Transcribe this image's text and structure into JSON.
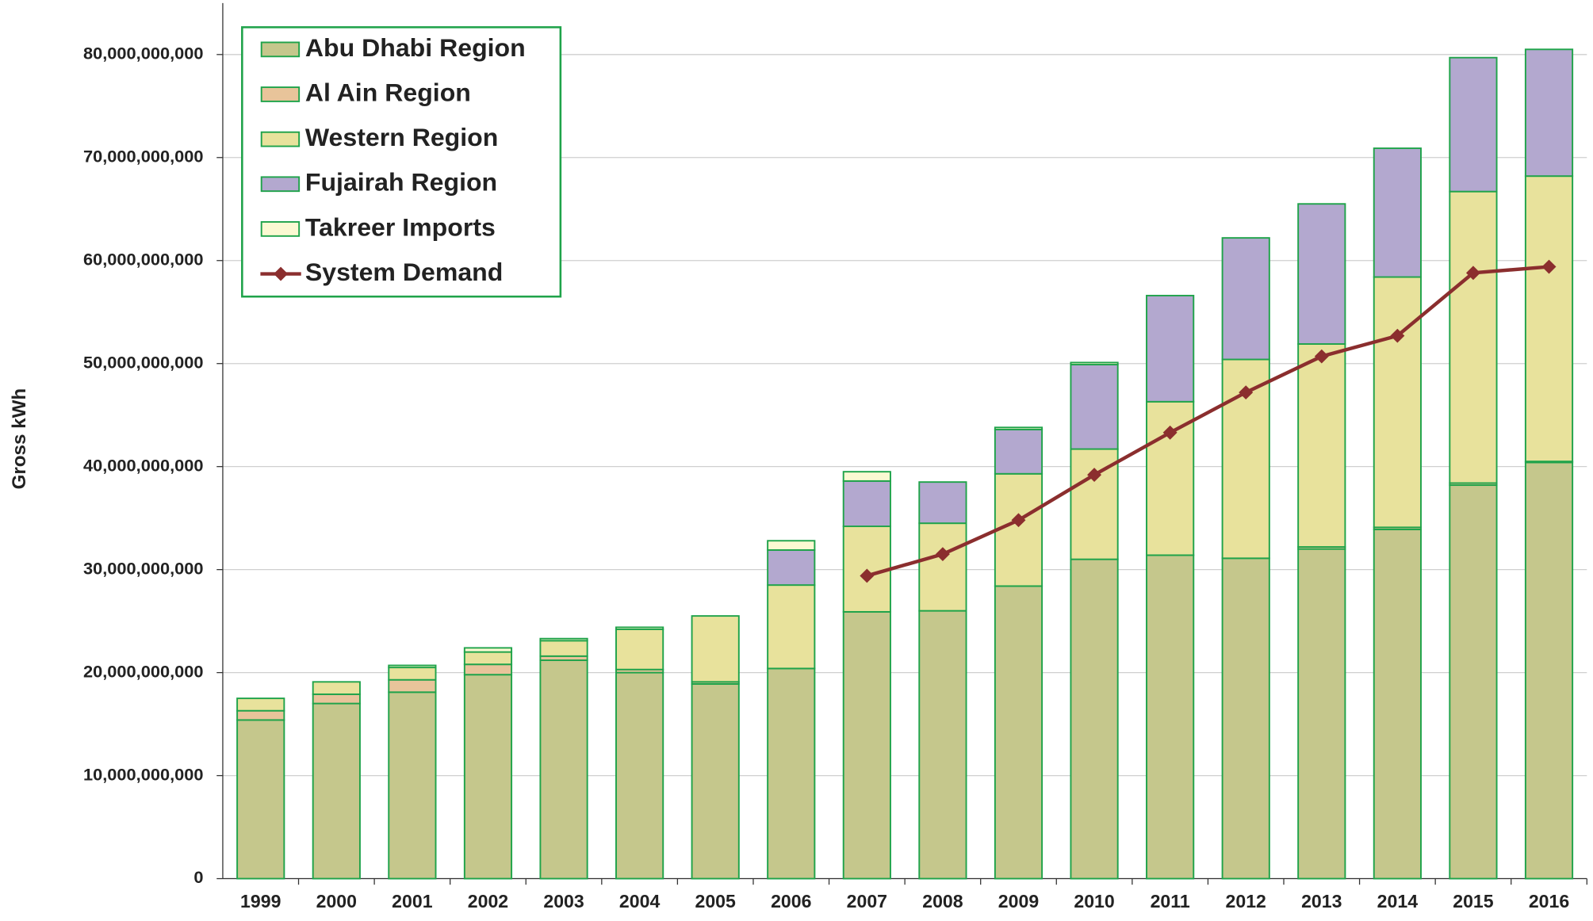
{
  "chart_data": {
    "type": "bar",
    "y_label": "Gross kWh",
    "categories": [
      "1999",
      "2000",
      "2001",
      "2002",
      "2003",
      "2004",
      "2005",
      "2006",
      "2007",
      "2008",
      "2009",
      "2010",
      "2011",
      "2012",
      "2013",
      "2014",
      "2015",
      "2016"
    ],
    "stacked": true,
    "grid": true,
    "legend": "upper left",
    "ylim": [
      0,
      85000000000
    ],
    "yticks": [
      0,
      {
        "value": 10000000000,
        "label": "10,000,000,000"
      },
      {
        "value": 20000000000,
        "label": "20,000,000,000"
      },
      {
        "value": 30000000000,
        "label": "30,000,000,000"
      },
      {
        "value": 40000000000,
        "label": "40,000,000,000"
      },
      {
        "value": 50000000000,
        "label": "50,000,000,000"
      },
      {
        "value": 60000000000,
        "label": "60,000,000,000"
      },
      {
        "value": 70000000000,
        "label": "70,000,000,000"
      },
      {
        "value": 80000000000,
        "label": "80,000,000,000"
      }
    ],
    "series": [
      {
        "name": "Abu Dhabi Region",
        "color": "#c5c78c",
        "values": [
          15400000000,
          17000000000,
          18100000000,
          19800000000,
          21200000000,
          20000000000,
          18900000000,
          20400000000,
          25900000000,
          26000000000,
          28400000000,
          31000000000,
          31400000000,
          31100000000,
          32000000000,
          33900000000,
          38200000000,
          40400000000
        ]
      },
      {
        "name": "Al Ain Region",
        "color": "#e8c49a",
        "values": [
          900000000,
          900000000,
          1200000000,
          1000000000,
          400000000,
          300000000,
          200000000,
          0,
          0,
          0,
          0,
          0,
          0,
          0,
          200000000,
          200000000,
          200000000,
          100000000
        ]
      },
      {
        "name": "Western Region",
        "color": "#e8e29c",
        "values": [
          1200000000,
          1200000000,
          1200000000,
          1200000000,
          1500000000,
          3900000000,
          6400000000,
          8100000000,
          8300000000,
          8500000000,
          10900000000,
          10700000000,
          14900000000,
          19300000000,
          19700000000,
          24300000000,
          28300000000,
          27700000000
        ]
      },
      {
        "name": "Fujairah Region",
        "color": "#b3a8cf",
        "values": [
          0,
          0,
          0,
          0,
          0,
          0,
          0,
          3400000000,
          4400000000,
          4000000000,
          4300000000,
          8200000000,
          10300000000,
          11800000000,
          13600000000,
          12500000000,
          13000000000,
          12300000000
        ]
      },
      {
        "name": "Takreer Imports",
        "color": "#fbf9d2",
        "values": [
          0,
          0,
          200000000,
          400000000,
          200000000,
          200000000,
          0,
          900000000,
          900000000,
          0,
          200000000,
          200000000,
          0,
          0,
          0,
          0,
          0,
          0
        ]
      },
      {
        "name": "System Demand",
        "type": "line",
        "color": "#8b2e2e",
        "values": [
          null,
          null,
          null,
          null,
          null,
          null,
          null,
          null,
          29400000000,
          31500000000,
          34800000000,
          39200000000,
          43300000000,
          47200000000,
          50700000000,
          52700000000,
          58800000000,
          59400000000
        ]
      }
    ]
  }
}
